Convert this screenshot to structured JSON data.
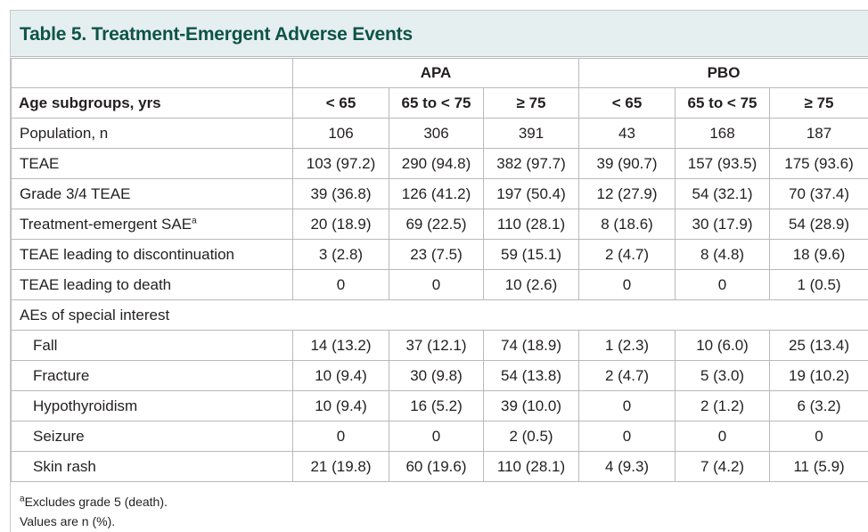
{
  "title": "Table 5. Treatment-Emergent Adverse Events",
  "groups": [
    "APA",
    "PBO"
  ],
  "row_header": "Age subgroups, yrs",
  "columns": [
    "< 65",
    "65 to < 75",
    "≥ 75",
    "< 65",
    "65 to < 75",
    "≥ 75"
  ],
  "rows": [
    {
      "label": "Population, n",
      "values": [
        "106",
        "306",
        "391",
        "43",
        "168",
        "187"
      ]
    },
    {
      "label": "TEAE",
      "values": [
        "103 (97.2)",
        "290 (94.8)",
        "382 (97.7)",
        "39 (90.7)",
        "157 (93.5)",
        "175 (93.6)"
      ]
    },
    {
      "label": "Grade 3/4 TEAE",
      "values": [
        "39 (36.8)",
        "126 (41.2)",
        "197 (50.4)",
        "12 (27.9)",
        "54 (32.1)",
        "70 (37.4)"
      ]
    },
    {
      "label": "Treatment-emergent SAE",
      "sup": "a",
      "values": [
        "20 (18.9)",
        "69 (22.5)",
        "110 (28.1)",
        "8 (18.6)",
        "30 (17.9)",
        "54 (28.9)"
      ]
    },
    {
      "label": "TEAE leading to discontinuation",
      "values": [
        "3 (2.8)",
        "23 (7.5)",
        "59 (15.1)",
        "2 (4.7)",
        "8 (4.8)",
        "18 (9.6)"
      ]
    },
    {
      "label": "TEAE leading to death",
      "values": [
        "0",
        "0",
        "10 (2.6)",
        "0",
        "0",
        "1 (0.5)"
      ]
    }
  ],
  "section_label": "AEs of special interest",
  "sub_rows": [
    {
      "label": "Fall",
      "values": [
        "14 (13.2)",
        "37 (12.1)",
        "74 (18.9)",
        "1 (2.3)",
        "10 (6.0)",
        "25 (13.4)"
      ]
    },
    {
      "label": "Fracture",
      "values": [
        "10 (9.4)",
        "30 (9.8)",
        "54 (13.8)",
        "2 (4.7)",
        "5 (3.0)",
        "19 (10.2)"
      ]
    },
    {
      "label": "Hypothyroidism",
      "values": [
        "10 (9.4)",
        "16 (5.2)",
        "39 (10.0)",
        "0",
        "2 (1.2)",
        "6 (3.2)"
      ]
    },
    {
      "label": "Seizure",
      "values": [
        "0",
        "0",
        "2 (0.5)",
        "0",
        "0",
        "0"
      ]
    },
    {
      "label": "Skin rash",
      "values": [
        "21 (19.8)",
        "60 (19.6)",
        "110 (28.1)",
        "4 (9.3)",
        "7 (4.2)",
        "11 (5.9)"
      ]
    }
  ],
  "footnotes": {
    "a_mark": "a",
    "a_text": "Excludes grade 5 (death).",
    "values_note": "Values are n (%)."
  },
  "colors": {
    "title": "#0d5448",
    "title_bg": "#e6eff0",
    "border": "#b9b9b9"
  }
}
